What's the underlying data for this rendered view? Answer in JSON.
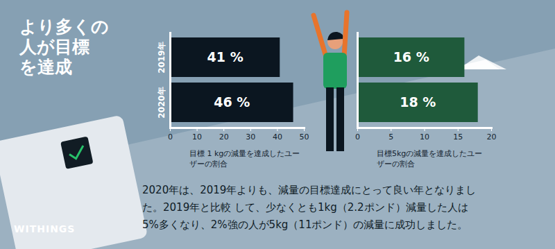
{
  "title": [
    "より多くの",
    "人が目標",
    "を達成"
  ],
  "caption": [
    "2020年は、2019年よりも、減量の目標達成にとって良い年となりまし",
    "た。2019年と比較 して、少なくとも1kg（2.2ポンド）減量した人は",
    "5%多くなり、2%強の人が5kg（11ポンド）の減量に成功しました。"
  ],
  "brand": "WITHINGS",
  "chart_data": [
    {
      "type": "bar",
      "orientation": "horizontal",
      "categories": [
        "2019年",
        "2020年"
      ],
      "values": [
        41,
        46
      ],
      "value_labels": [
        "41 %",
        "46 %"
      ],
      "data_labels": true,
      "color": "#0b1620",
      "xlim": [
        0,
        50
      ],
      "xticks": [
        0,
        10,
        20,
        30,
        40,
        50
      ],
      "xlabel": "目標 1 kgの減量を達成したユーザーの割合"
    },
    {
      "type": "bar",
      "orientation": "horizontal",
      "categories": [
        null,
        null
      ],
      "values": [
        16,
        18
      ],
      "value_labels": [
        "16 %",
        "18 %"
      ],
      "data_labels": true,
      "color": "#1f5a3b",
      "xlim": [
        0,
        20
      ],
      "xticks": [
        0,
        5,
        10,
        15,
        20
      ],
      "tick_labels": "x",
      "xlabel": "目標5kgの減量を達成したユーザーの割合"
    }
  ]
}
